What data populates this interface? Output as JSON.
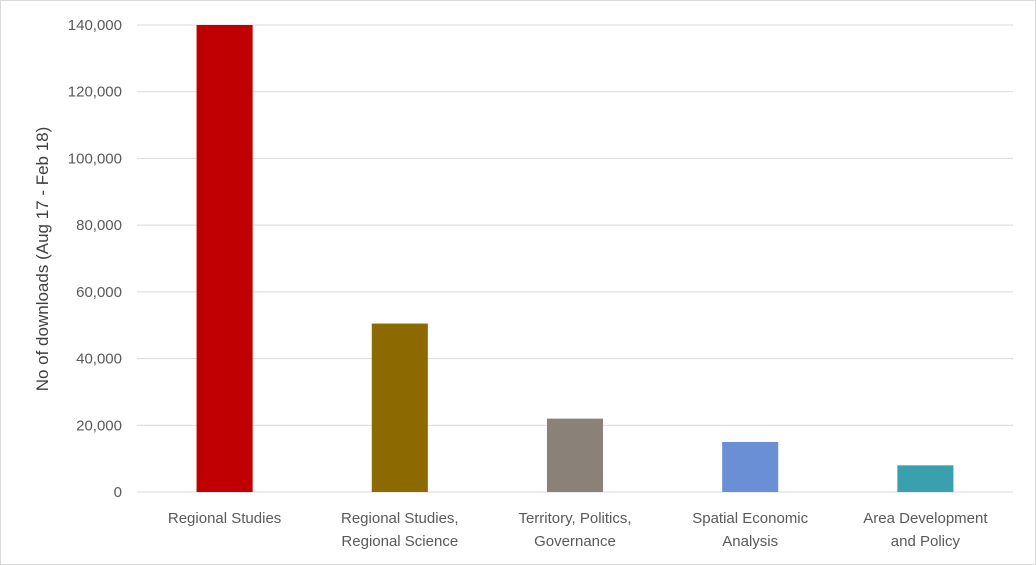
{
  "chart_data": {
    "type": "bar",
    "title": "",
    "xlabel": "",
    "ylabel": "No of downloads (Aug 17 - Feb 18)",
    "ylim": [
      0,
      140000
    ],
    "yticks": [
      0,
      20000,
      40000,
      60000,
      80000,
      100000,
      120000,
      140000
    ],
    "ytick_labels": [
      "0",
      "20,000",
      "40,000",
      "60,000",
      "80,000",
      "100,000",
      "120,000",
      "140,000"
    ],
    "grid": true,
    "categories": [
      [
        "Regional Studies"
      ],
      [
        "Regional Studies,",
        "Regional Science"
      ],
      [
        "Territory, Politics,",
        "Governance"
      ],
      [
        "Spatial Economic",
        "Analysis"
      ],
      [
        "Area Development",
        "and Policy"
      ]
    ],
    "values": [
      140000,
      50500,
      22000,
      15000,
      8000
    ],
    "colors": [
      "#c00000",
      "#8c6a00",
      "#8a8279",
      "#6b8fd4",
      "#3aa0ad"
    ]
  }
}
